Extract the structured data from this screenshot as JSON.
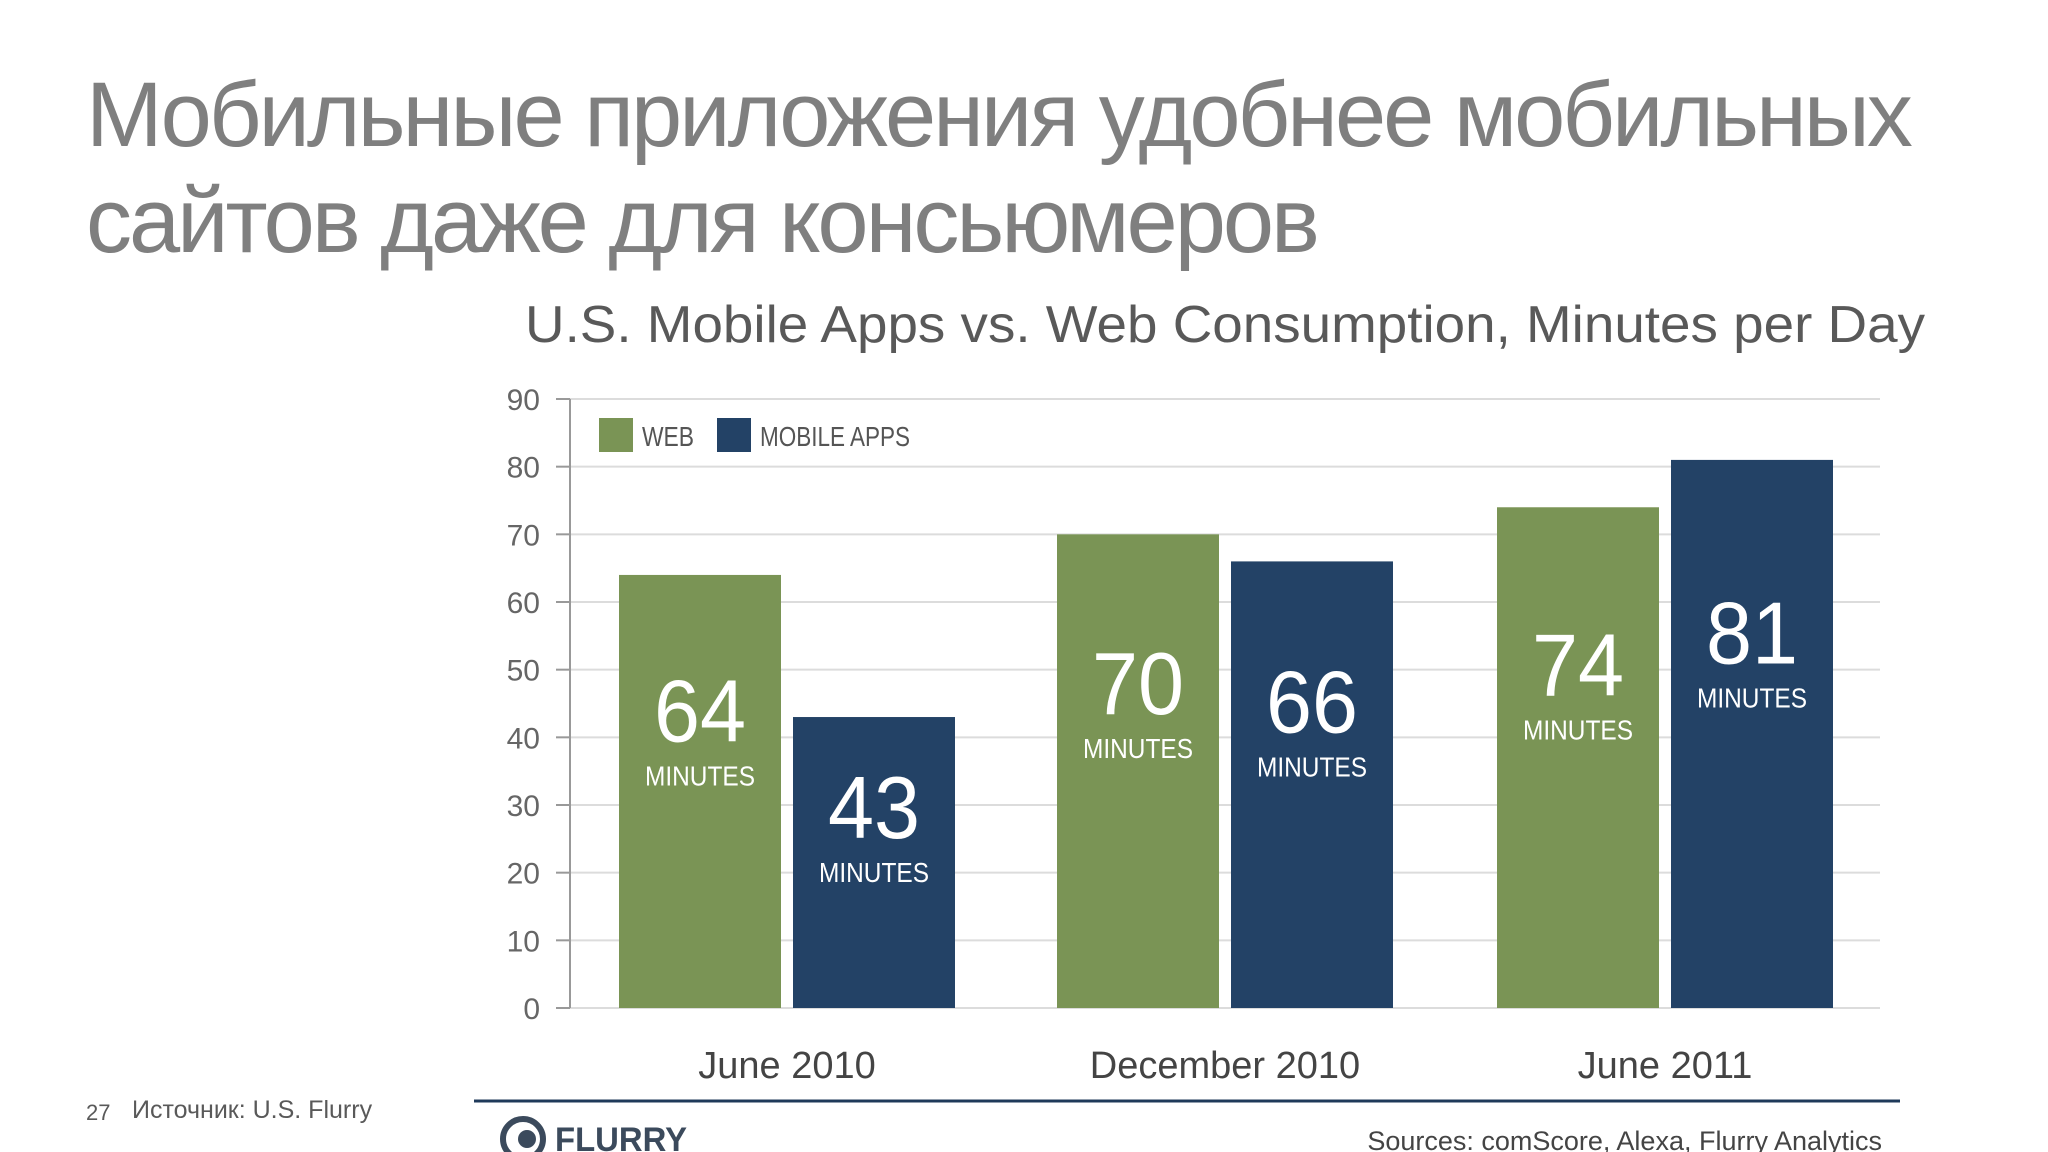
{
  "slide": {
    "title_line1": "Мобильные приложения удобнее мобильных",
    "title_line2": "сайтов даже для консьюмеров",
    "slide_number": "27",
    "footer_source": "Источник: U.S. Flurry"
  },
  "chart_data": {
    "type": "bar",
    "title": "U.S. Mobile Apps vs. Web Consumption, Minutes per Day",
    "categories": [
      "June 2010",
      "December 2010",
      "June 2011"
    ],
    "series": [
      {
        "name": "WEB",
        "values": [
          64,
          70,
          74
        ],
        "color": "#7a9455"
      },
      {
        "name": "MOBILE APPS",
        "values": [
          43,
          66,
          81
        ],
        "color": "#234266"
      }
    ],
    "value_unit_label": "MINUTES",
    "ylim": [
      0,
      90
    ],
    "yticks": [
      0,
      10,
      20,
      30,
      40,
      50,
      60,
      70,
      80,
      90
    ],
    "grid": true,
    "legend_position": "top-left",
    "brand": "FLURRY",
    "sources_note": "Sources: comScore, Alexa, Flurry Analytics"
  },
  "colors": {
    "title": "#7f7f7f",
    "chart_title": "#595959",
    "grid": "#dcdcdc",
    "axis_text": "#666666",
    "rule": "#1f3a5a"
  }
}
